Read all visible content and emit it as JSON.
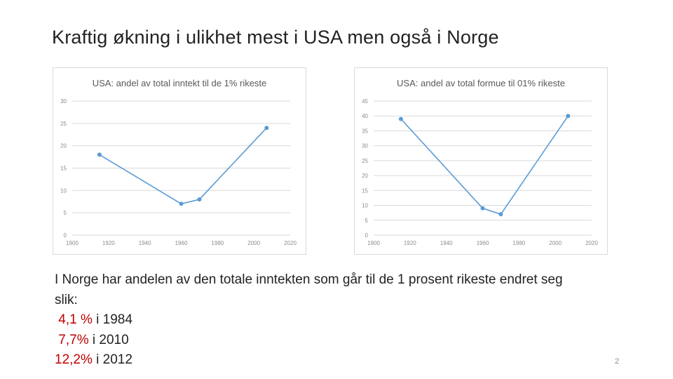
{
  "slide": {
    "title": "Kraftig økning i ulikhet mest i USA men også i Norge",
    "page_number": "2"
  },
  "text": {
    "intro_line1": "I Norge har andelen av den totale inntekten som går til de 1 prosent rikeste endret seg",
    "intro_line2": "slik:",
    "items": [
      {
        "value": "4,1 %",
        "rest": " i 1984",
        "lead": " "
      },
      {
        "value": "7,7%",
        "rest": " i 2010",
        "lead": " "
      },
      {
        "value": "12,2%",
        "rest": " i 2012",
        "lead": ""
      }
    ]
  },
  "colors": {
    "line": "#5b9bd5",
    "highlight": "#c00000",
    "grid": "#d9d9d9"
  },
  "chart_data": [
    {
      "type": "line",
      "title": "USA:  andel av total inntekt til de 1% rikeste",
      "x": [
        1915,
        1960,
        1970,
        2007
      ],
      "y": [
        18,
        7,
        8,
        24
      ],
      "xlim": [
        1900,
        2020
      ],
      "ylim": [
        0,
        30
      ],
      "xticks": [
        1900,
        1920,
        1940,
        1960,
        1980,
        2000,
        2020
      ],
      "yticks": [
        0,
        5,
        10,
        15,
        20,
        25,
        30
      ],
      "grid": true,
      "legend": "none"
    },
    {
      "type": "line",
      "title": "USA:  andel av total formue til 01% rikeste",
      "x": [
        1915,
        1960,
        1970,
        2007
      ],
      "y": [
        39,
        9,
        7,
        40
      ],
      "xlim": [
        1900,
        2020
      ],
      "ylim": [
        0,
        45
      ],
      "xticks": [
        1900,
        1920,
        1940,
        1960,
        1980,
        2000,
        2020
      ],
      "yticks": [
        0,
        5,
        10,
        15,
        20,
        25,
        30,
        35,
        40,
        45
      ],
      "grid": true,
      "legend": "none"
    }
  ]
}
